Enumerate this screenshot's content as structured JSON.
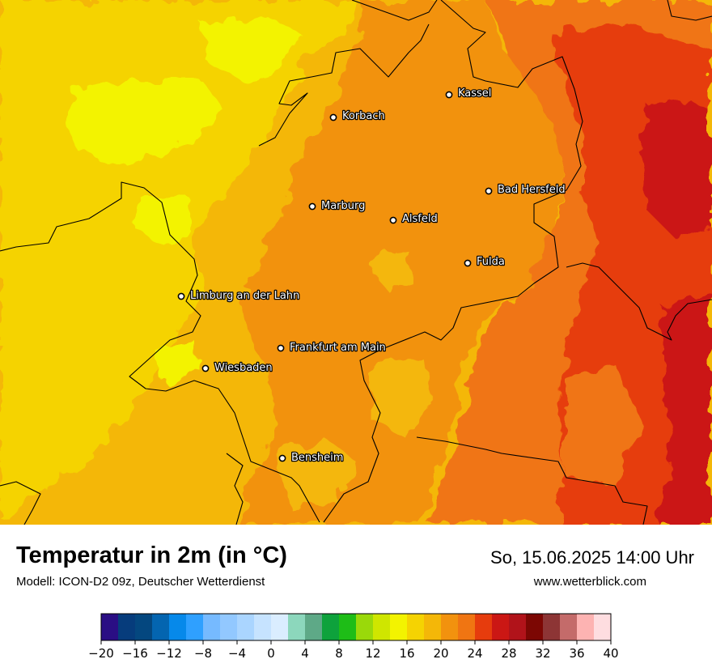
{
  "map": {
    "title": "Temperatur in 2m (in °C)",
    "model_info": "Modell: ICON-D2 09z, Deutscher Wetterdienst",
    "datetime": "So, 15.06.2025 14:00 Uhr",
    "website": "www.wetterblick.com",
    "cities": [
      {
        "name": "Kassel"
      },
      {
        "name": "Korbach"
      },
      {
        "name": "Bad Hersfeld"
      },
      {
        "name": "Marburg"
      },
      {
        "name": "Alsfeld"
      },
      {
        "name": "Fulda"
      },
      {
        "name": "Limburg an der Lahn"
      },
      {
        "name": "Frankfurt am Main"
      },
      {
        "name": "Wiesbaden"
      },
      {
        "name": "Bensheim"
      }
    ],
    "colorbar": {
      "unit": "°C",
      "min": -20,
      "max": 40,
      "step": 2,
      "ticks": [
        "−20",
        "−16",
        "−12",
        "−8",
        "−4",
        "0",
        "4",
        "8",
        "12",
        "16",
        "20",
        "24",
        "28",
        "32",
        "36",
        "40"
      ],
      "colors": [
        "#2a0e84",
        "#063c7c",
        "#04477f",
        "#0465b0",
        "#0689ea",
        "#2fa0ff",
        "#76baff",
        "#92c8ff",
        "#aad5ff",
        "#c6e3ff",
        "#daedff",
        "#8cd7bc",
        "#5ea987",
        "#0ea23c",
        "#1ebd17",
        "#9ad90a",
        "#cfe600",
        "#f3f300",
        "#f5d302",
        "#f4b708",
        "#f2920e",
        "#f07512",
        "#e63c0d",
        "#cb1714",
        "#b1131a",
        "#7c0703",
        "#8d3535",
        "#c46b6a",
        "#fdb3b2",
        "#fedde0"
      ]
    }
  }
}
